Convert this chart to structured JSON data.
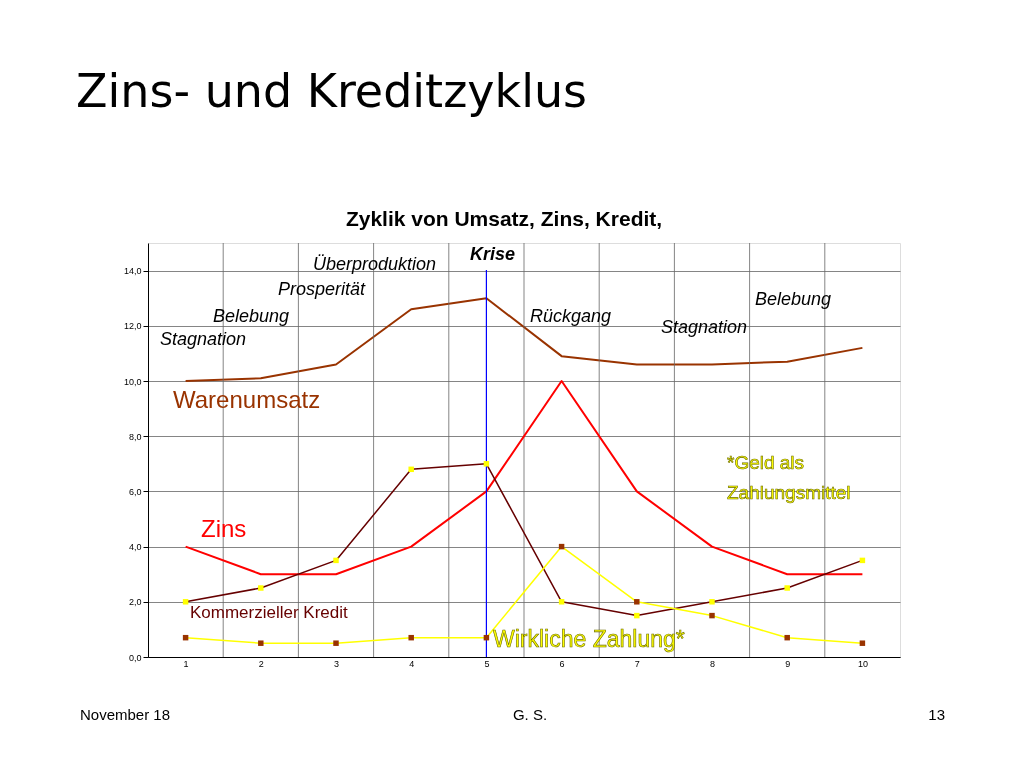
{
  "chart_data": {
    "type": "line",
    "title": "Zins- und Kreditzyklus",
    "subtitle": "Zyklik von Umsatz, Zins, Kredit,",
    "categories": [
      "1",
      "2",
      "3",
      "4",
      "5",
      "6",
      "7",
      "8",
      "9",
      "10"
    ],
    "series": [
      {
        "name": "Warenumsatz",
        "color": "#993300",
        "values": [
          10.0,
          10.1,
          10.6,
          12.6,
          13.0,
          10.9,
          10.6,
          10.6,
          10.7,
          11.2
        ]
      },
      {
        "name": "Zins",
        "color": "#ff0000",
        "values": [
          4.0,
          3.0,
          3.0,
          4.0,
          6.0,
          10.0,
          6.0,
          4.0,
          3.0,
          3.0
        ]
      },
      {
        "name": "Kommerzieller Kredit",
        "color": "#660000",
        "marker": "square",
        "values": [
          2.0,
          2.5,
          3.5,
          6.8,
          7.0,
          2.0,
          1.5,
          2.0,
          2.5,
          3.5
        ]
      },
      {
        "name": "Wirkliche Zahlung*",
        "color": "#ffff00",
        "marker": "square",
        "values": [
          0.7,
          0.5,
          0.5,
          0.7,
          0.7,
          4.0,
          2.0,
          1.5,
          0.7,
          0.5
        ]
      }
    ],
    "ylim": [
      0,
      15
    ],
    "yticks": [
      {
        "value": 0,
        "label": "0,0"
      },
      {
        "value": 2,
        "label": "2,0"
      },
      {
        "value": 4,
        "label": "4,0"
      },
      {
        "value": 6,
        "label": "6,0"
      },
      {
        "value": 8,
        "label": "8,0"
      },
      {
        "value": 10,
        "label": "10,0"
      },
      {
        "value": 12,
        "label": "12,0"
      },
      {
        "value": 14,
        "label": "14,0"
      }
    ],
    "grid": true,
    "ref_lines": [
      {
        "axis": "x",
        "value": "5",
        "label": null,
        "color": "#0000ff"
      }
    ],
    "annotations": [
      "Stagnation",
      "Belebung",
      "Prosperität",
      "Überproduktion",
      "Krise",
      "Rückgang",
      "Stagnation",
      "Belebung",
      "*Geld als Zahlungsmittel",
      "November 18",
      "G. S.",
      "13"
    ]
  }
}
